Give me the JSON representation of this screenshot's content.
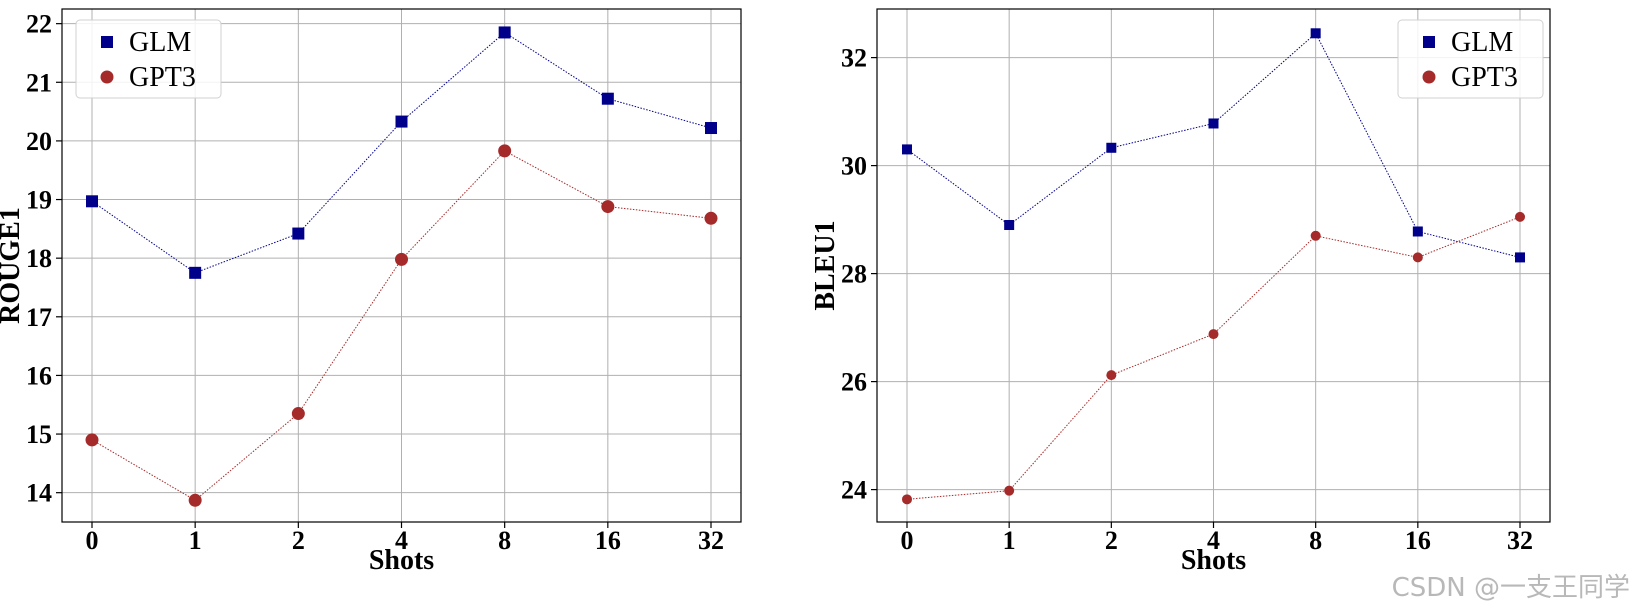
{
  "watermark": "CSDN @一支王同学",
  "chart_data": [
    {
      "type": "line",
      "categories": [
        "0",
        "1",
        "2",
        "4",
        "8",
        "16",
        "32"
      ],
      "xlabel": "Shots",
      "ylabel": "ROUGE1",
      "ylim": [
        13.5,
        22.25
      ],
      "yticks": [
        14,
        15,
        16,
        17,
        18,
        19,
        20,
        21,
        22
      ],
      "grid": true,
      "legend": "top-left",
      "series": [
        {
          "name": "GLM",
          "marker": "square",
          "color": "#00008b",
          "values": [
            18.97,
            17.75,
            18.42,
            20.33,
            21.85,
            20.72,
            20.22
          ]
        },
        {
          "name": "GPT3",
          "marker": "circle",
          "color": "#a52a2a",
          "values": [
            14.9,
            13.87,
            15.35,
            17.98,
            19.83,
            18.88,
            18.68
          ]
        }
      ]
    },
    {
      "type": "line",
      "categories": [
        "0",
        "1",
        "2",
        "4",
        "8",
        "16",
        "32"
      ],
      "xlabel": "Shots",
      "ylabel": "BLEU1",
      "ylim": [
        23.4,
        32.9
      ],
      "yticks": [
        24,
        26,
        28,
        30,
        32
      ],
      "grid": true,
      "legend": "top-right",
      "series": [
        {
          "name": "GLM",
          "marker": "square",
          "color": "#00008b",
          "values": [
            30.3,
            28.9,
            30.33,
            30.78,
            32.45,
            28.78,
            28.3
          ]
        },
        {
          "name": "GPT3",
          "marker": "circle",
          "color": "#a52a2a",
          "values": [
            23.82,
            23.98,
            26.12,
            26.88,
            28.7,
            28.3,
            29.05
          ]
        }
      ]
    }
  ]
}
